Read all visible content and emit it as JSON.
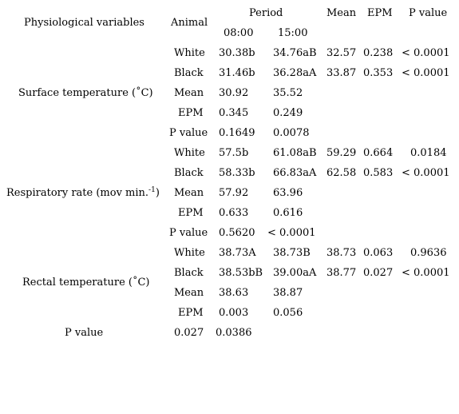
{
  "header": {
    "variables": "Physiological variables",
    "animal": "Animal",
    "period": "Period",
    "time1": "08:00",
    "time2": "15:00",
    "mean": "Mean",
    "epm": "EPM",
    "pvalue": "P value"
  },
  "groups": [
    {
      "label": "Surface temperature (˚C)",
      "rows": [
        {
          "animal": "White",
          "t1": "30.38b",
          "t2": "34.76aB",
          "mean": "32.57",
          "epm": "0.238",
          "p": "< 0.0001"
        },
        {
          "animal": "Black",
          "t1": "31.46b",
          "t2": "36.28aA",
          "mean": "33.87",
          "epm": "0.353",
          "p": "< 0.0001"
        },
        {
          "animal": "Mean",
          "t1": "30.92",
          "t2": "35.52",
          "mean": "",
          "epm": "",
          "p": ""
        },
        {
          "animal": "EPM",
          "t1": "0.345",
          "t2": "0.249",
          "mean": "",
          "epm": "",
          "p": ""
        },
        {
          "animal": "P value",
          "t1": "0.1649",
          "t2": "0.0078",
          "mean": "",
          "epm": "",
          "p": ""
        }
      ]
    },
    {
      "label": "Respiratory rate (mov min.",
      "label_sup": "-1",
      "label_end": ")",
      "rows": [
        {
          "animal": "White",
          "t1": "57.5b",
          "t2": "61.08aB",
          "mean": "59.29",
          "epm": "0.664",
          "p": "0.0184"
        },
        {
          "animal": "Black",
          "t1": "58.33b",
          "t2": "66.83aA",
          "mean": "62.58",
          "epm": "0.583",
          "p": "< 0.0001"
        },
        {
          "animal": "Mean",
          "t1": "57.92",
          "t2": "63.96",
          "mean": "",
          "epm": "",
          "p": ""
        },
        {
          "animal": "EPM",
          "t1": "0.633",
          "t2": "0.616",
          "mean": "",
          "epm": "",
          "p": ""
        },
        {
          "animal": "P value",
          "t1": "0.5620",
          "t2": "< 0.0001",
          "mean": "",
          "epm": "",
          "p": ""
        }
      ]
    },
    {
      "label": "Rectal temperature (˚C)",
      "rows": [
        {
          "animal": "White",
          "t1": "38.73A",
          "t2": "38.73B",
          "mean": "38.73",
          "epm": "0.063",
          "p": "0.9636"
        },
        {
          "animal": "Black",
          "t1": "38.53bB",
          "t2": "39.00aA",
          "mean": "38.77",
          "epm": "0.027",
          "p": "< 0.0001"
        },
        {
          "animal": "Mean",
          "t1": "38.63",
          "t2": "38.87",
          "mean": "",
          "epm": "",
          "p": ""
        },
        {
          "animal": "EPM",
          "t1": "0.003",
          "t2": "0.056",
          "mean": "",
          "epm": "",
          "p": ""
        }
      ]
    }
  ],
  "footer_row": {
    "label": "P value",
    "t1": "0.027",
    "t2": "0.0386"
  }
}
